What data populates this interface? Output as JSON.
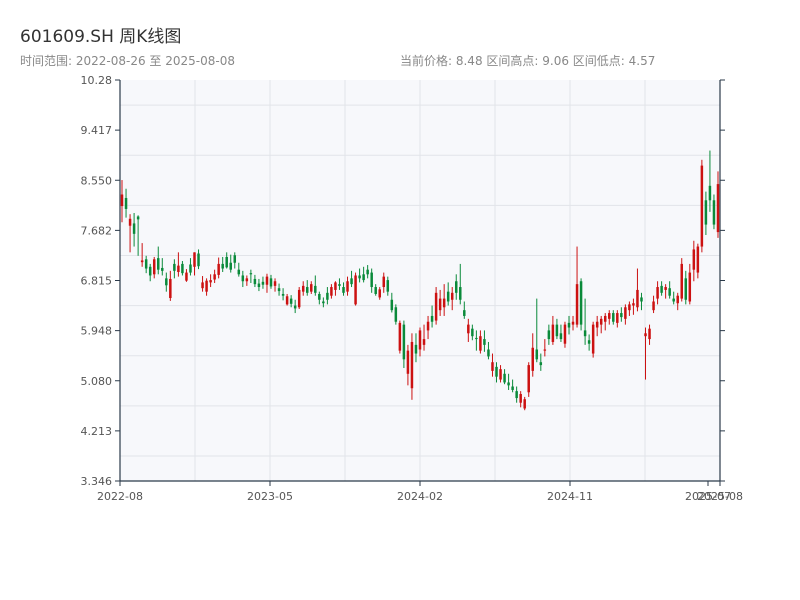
{
  "header": {
    "title": "601609.SH 周K线图",
    "range_text": "时间范围: 2022-08-26 至 2025-08-08",
    "stats_text": "当前价格: 8.48   区间高点: 9.06   区间低点: 4.57"
  },
  "chart_data": {
    "type": "candlestick",
    "title": "601609.SH 周K线图",
    "date_range": [
      "2022-08-26",
      "2025-08-08"
    ],
    "current_price": 8.48,
    "high": 9.06,
    "low": 4.57,
    "ylim": [
      3.346,
      10.28
    ],
    "y_ticks": [
      "10.28",
      "9.417",
      "8.550",
      "7.682",
      "6.815",
      "5.948",
      "5.080",
      "4.213",
      "3.346"
    ],
    "x_ticks": [
      "2022-08",
      "2023-05",
      "2024-02",
      "2024-11",
      "2025-07",
      "2025-08"
    ],
    "grid": true,
    "colors": {
      "up": "#cc1111",
      "down": "#0a8a3a",
      "background": "#f7f8fb",
      "axis": "#2b3a4a",
      "grid": "#e2e4e9"
    },
    "candles": [
      [
        8.1,
        8.55,
        7.82,
        8.3
      ],
      [
        8.24,
        8.4,
        7.9,
        8.05
      ],
      [
        7.76,
        7.96,
        7.3,
        7.88
      ],
      [
        7.8,
        7.98,
        7.4,
        7.62
      ],
      [
        7.92,
        7.94,
        7.24,
        7.87
      ],
      [
        7.13,
        7.46,
        7.05,
        7.16
      ],
      [
        7.18,
        7.24,
        6.94,
        7.02
      ],
      [
        7.05,
        7.1,
        6.8,
        6.9
      ],
      [
        6.92,
        7.22,
        6.85,
        7.18
      ],
      [
        7.2,
        7.4,
        6.92,
        7.0
      ],
      [
        7.03,
        7.2,
        6.9,
        6.98
      ],
      [
        6.85,
        6.95,
        6.62,
        6.73
      ],
      [
        6.51,
        6.98,
        6.46,
        6.84
      ],
      [
        7.1,
        7.18,
        6.85,
        6.98
      ],
      [
        6.96,
        7.3,
        6.88,
        7.07
      ],
      [
        7.1,
        7.15,
        6.9,
        6.94
      ],
      [
        6.81,
        7.01,
        6.79,
        6.95
      ],
      [
        7.09,
        7.2,
        6.9,
        6.95
      ],
      [
        7.05,
        7.3,
        6.9,
        7.3
      ],
      [
        7.28,
        7.35,
        7.01,
        7.06
      ],
      [
        6.68,
        6.89,
        6.62,
        6.78
      ],
      [
        6.62,
        6.85,
        6.55,
        6.81
      ],
      [
        6.78,
        6.92,
        6.7,
        6.82
      ],
      [
        6.83,
        7.0,
        6.77,
        6.92
      ],
      [
        6.91,
        7.21,
        6.85,
        7.1
      ],
      [
        7.1,
        7.22,
        6.96,
        7.02
      ],
      [
        7.22,
        7.3,
        7.02,
        7.04
      ],
      [
        7.12,
        7.26,
        6.95,
        7.0
      ],
      [
        7.25,
        7.3,
        7.02,
        7.12
      ],
      [
        7.0,
        7.12,
        6.88,
        6.92
      ],
      [
        6.9,
        6.98,
        6.7,
        6.8
      ],
      [
        6.8,
        6.9,
        6.72,
        6.85
      ],
      [
        6.94,
        7.0,
        6.77,
        6.92
      ],
      [
        6.84,
        6.91,
        6.7,
        6.75
      ],
      [
        6.76,
        6.84,
        6.63,
        6.7
      ],
      [
        6.79,
        6.88,
        6.67,
        6.74
      ],
      [
        6.74,
        6.93,
        6.6,
        6.88
      ],
      [
        6.85,
        6.91,
        6.67,
        6.71
      ],
      [
        6.72,
        6.85,
        6.62,
        6.8
      ],
      [
        6.68,
        6.76,
        6.55,
        6.63
      ],
      [
        6.58,
        6.68,
        6.47,
        6.55
      ],
      [
        6.4,
        6.58,
        6.38,
        6.54
      ],
      [
        6.5,
        6.56,
        6.35,
        6.41
      ],
      [
        6.38,
        6.48,
        6.25,
        6.33
      ],
      [
        6.35,
        6.7,
        6.32,
        6.65
      ],
      [
        6.62,
        6.8,
        6.55,
        6.72
      ],
      [
        6.7,
        6.82,
        6.55,
        6.6
      ],
      [
        6.62,
        6.8,
        6.58,
        6.75
      ],
      [
        6.72,
        6.9,
        6.55,
        6.6
      ],
      [
        6.58,
        6.62,
        6.4,
        6.48
      ],
      [
        6.45,
        6.52,
        6.35,
        6.42
      ],
      [
        6.6,
        6.7,
        6.4,
        6.48
      ],
      [
        6.55,
        6.75,
        6.5,
        6.7
      ],
      [
        6.65,
        6.8,
        6.55,
        6.78
      ],
      [
        6.75,
        6.85,
        6.65,
        6.72
      ],
      [
        6.7,
        6.78,
        6.55,
        6.6
      ],
      [
        6.62,
        6.88,
        6.55,
        6.8
      ],
      [
        6.85,
        6.98,
        6.7,
        6.75
      ],
      [
        6.4,
        6.95,
        6.38,
        6.9
      ],
      [
        6.9,
        7.02,
        6.78,
        6.85
      ],
      [
        6.92,
        7.05,
        6.78,
        6.82
      ],
      [
        7.0,
        7.08,
        6.85,
        6.92
      ],
      [
        6.95,
        7.02,
        6.6,
        6.7
      ],
      [
        6.7,
        6.75,
        6.55,
        6.58
      ],
      [
        6.52,
        6.7,
        6.48,
        6.66
      ],
      [
        6.7,
        6.95,
        6.6,
        6.88
      ],
      [
        6.82,
        6.88,
        6.55,
        6.62
      ],
      [
        6.48,
        6.6,
        6.26,
        6.3
      ],
      [
        6.35,
        6.4,
        6.05,
        6.1
      ],
      [
        5.6,
        6.12,
        5.55,
        6.08
      ],
      [
        6.05,
        6.12,
        5.3,
        5.45
      ],
      [
        5.2,
        5.7,
        5.0,
        5.6
      ],
      [
        4.95,
        5.9,
        4.75,
        5.75
      ],
      [
        5.7,
        5.9,
        5.4,
        5.55
      ],
      [
        5.62,
        6.0,
        5.5,
        5.95
      ],
      [
        5.7,
        6.05,
        5.6,
        5.8
      ],
      [
        5.95,
        6.2,
        5.8,
        6.1
      ],
      [
        6.2,
        6.38,
        6.0,
        6.1
      ],
      [
        6.12,
        6.7,
        6.05,
        6.6
      ],
      [
        6.3,
        6.65,
        6.2,
        6.5
      ],
      [
        6.35,
        6.75,
        6.2,
        6.5
      ],
      [
        6.62,
        6.78,
        6.38,
        6.45
      ],
      [
        6.48,
        6.7,
        6.3,
        6.6
      ],
      [
        6.8,
        6.92,
        6.48,
        6.6
      ],
      [
        6.7,
        7.1,
        6.4,
        6.48
      ],
      [
        6.3,
        6.45,
        6.15,
        6.2
      ],
      [
        5.9,
        6.15,
        5.75,
        6.05
      ],
      [
        5.98,
        6.05,
        5.78,
        5.85
      ],
      [
        5.82,
        5.95,
        5.6,
        5.8
      ],
      [
        5.6,
        5.95,
        5.55,
        5.85
      ],
      [
        5.8,
        5.95,
        5.58,
        5.7
      ],
      [
        5.62,
        5.75,
        5.45,
        5.5
      ],
      [
        5.25,
        5.55,
        5.15,
        5.4
      ],
      [
        5.32,
        5.4,
        5.05,
        5.15
      ],
      [
        5.1,
        5.35,
        5.05,
        5.28
      ],
      [
        5.2,
        5.28,
        5.02,
        5.05
      ],
      [
        5.05,
        5.2,
        4.92,
        5.0
      ],
      [
        4.98,
        5.1,
        4.88,
        4.92
      ],
      [
        4.9,
        4.98,
        4.7,
        4.78
      ],
      [
        4.7,
        4.9,
        4.62,
        4.85
      ],
      [
        4.6,
        4.8,
        4.57,
        4.76
      ],
      [
        4.88,
        5.4,
        4.8,
        5.35
      ],
      [
        5.25,
        5.9,
        5.15,
        5.65
      ],
      [
        5.62,
        6.5,
        5.4,
        5.45
      ],
      [
        5.4,
        5.55,
        5.25,
        5.35
      ],
      [
        5.6,
        5.8,
        5.5,
        5.62
      ],
      [
        5.95,
        6.05,
        5.7,
        5.8
      ],
      [
        5.75,
        6.2,
        5.7,
        6.05
      ],
      [
        6.05,
        6.15,
        5.8,
        5.85
      ],
      [
        5.9,
        6.05,
        5.75,
        5.8
      ],
      [
        5.72,
        6.1,
        5.65,
        6.05
      ],
      [
        6.08,
        6.2,
        5.88,
        6.0
      ],
      [
        6.05,
        6.2,
        5.95,
        6.1
      ],
      [
        6.05,
        7.4,
        6.0,
        6.75
      ],
      [
        6.8,
        6.85,
        5.95,
        6.05
      ],
      [
        5.95,
        6.5,
        5.7,
        5.85
      ],
      [
        5.78,
        5.88,
        5.6,
        5.72
      ],
      [
        5.55,
        6.1,
        5.48,
        6.05
      ],
      [
        6.0,
        6.2,
        5.85,
        6.1
      ],
      [
        6.05,
        6.2,
        5.9,
        6.15
      ],
      [
        6.1,
        6.25,
        5.95,
        6.2
      ],
      [
        6.15,
        6.3,
        6.05,
        6.25
      ],
      [
        6.25,
        6.3,
        6.05,
        6.1
      ],
      [
        6.08,
        6.3,
        6.0,
        6.25
      ],
      [
        6.25,
        6.35,
        6.1,
        6.18
      ],
      [
        6.15,
        6.4,
        6.05,
        6.35
      ],
      [
        6.3,
        6.45,
        6.2,
        6.4
      ],
      [
        6.38,
        6.5,
        6.22,
        6.42
      ],
      [
        6.35,
        7.02,
        6.28,
        6.65
      ],
      [
        6.52,
        6.6,
        6.3,
        6.45
      ],
      [
        5.85,
        6.0,
        5.1,
        5.9
      ],
      [
        5.8,
        6.05,
        5.7,
        5.98
      ],
      [
        6.3,
        6.55,
        6.25,
        6.45
      ],
      [
        6.5,
        6.8,
        6.4,
        6.7
      ],
      [
        6.72,
        6.8,
        6.55,
        6.6
      ],
      [
        6.65,
        6.75,
        6.5,
        6.7
      ],
      [
        6.68,
        6.8,
        6.5,
        6.55
      ],
      [
        6.5,
        6.62,
        6.4,
        6.45
      ],
      [
        6.42,
        6.6,
        6.3,
        6.55
      ],
      [
        6.5,
        7.2,
        6.45,
        7.1
      ],
      [
        6.85,
        6.98,
        6.4,
        6.48
      ],
      [
        6.45,
        7.1,
        6.4,
        6.95
      ],
      [
        7.0,
        7.5,
        6.8,
        7.35
      ],
      [
        6.95,
        7.45,
        6.85,
        7.4
      ],
      [
        7.4,
        8.9,
        7.3,
        8.8
      ],
      [
        8.2,
        8.35,
        7.6,
        7.78
      ],
      [
        8.45,
        9.06,
        8.0,
        8.2
      ],
      [
        8.2,
        8.3,
        7.7,
        7.78
      ],
      [
        7.65,
        8.7,
        7.55,
        8.48
      ]
    ]
  }
}
